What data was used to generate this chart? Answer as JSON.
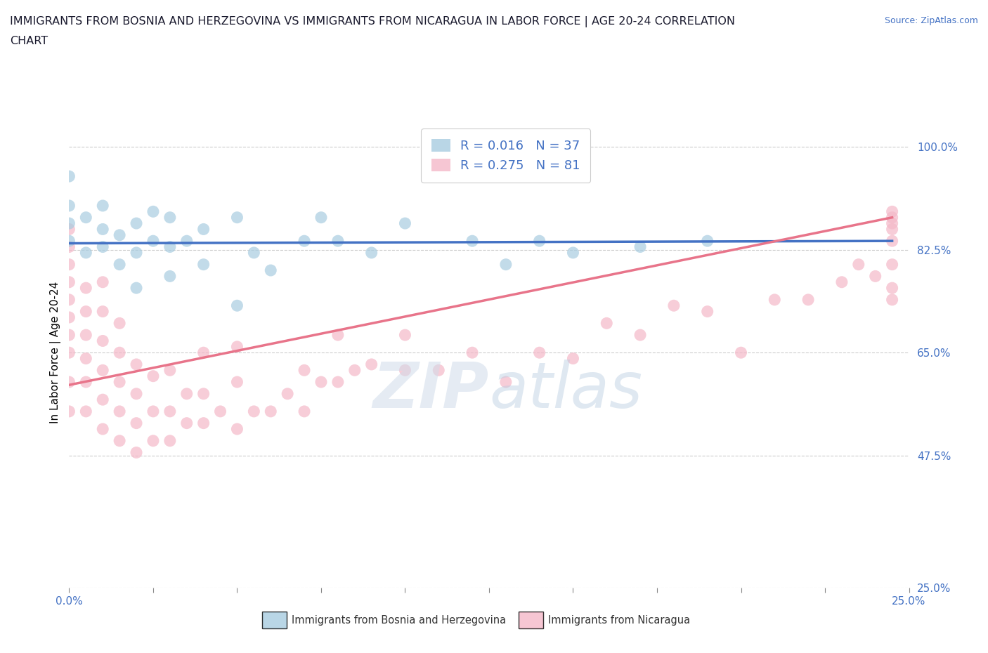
{
  "title_line1": "IMMIGRANTS FROM BOSNIA AND HERZEGOVINA VS IMMIGRANTS FROM NICARAGUA IN LABOR FORCE | AGE 20-24 CORRELATION",
  "title_line2": "CHART",
  "source_text": "Source: ZipAtlas.com",
  "ylabel": "In Labor Force | Age 20-24",
  "xlim": [
    0.0,
    0.25
  ],
  "ylim": [
    0.25,
    1.05
  ],
  "yticks": [
    0.25,
    0.475,
    0.65,
    0.825,
    1.0
  ],
  "ytick_labels": [
    "25.0%",
    "47.5%",
    "65.0%",
    "82.5%",
    "100.0%"
  ],
  "xticks": [
    0.0,
    0.025,
    0.05,
    0.075,
    0.1,
    0.125,
    0.15,
    0.175,
    0.2,
    0.225,
    0.25
  ],
  "xtick_labels_show": {
    "0.0": "0.0%",
    "0.25": "25.0%"
  },
  "color_bosnia": "#a8cce0",
  "color_nicaragua": "#f4b8c8",
  "line_color_bosnia": "#4472c4",
  "line_color_nicaragua": "#e8748a",
  "legend_label_bosnia": "R = 0.016   N = 37",
  "legend_label_nicaragua": "R = 0.275   N = 81",
  "legend_color_text": "#4472c4",
  "bottom_label_bosnia": "Immigrants from Bosnia and Herzegovina",
  "bottom_label_nicaragua": "Immigrants from Nicaragua",
  "bosnia_x": [
    0.0,
    0.0,
    0.0,
    0.0,
    0.005,
    0.005,
    0.01,
    0.01,
    0.01,
    0.015,
    0.015,
    0.02,
    0.02,
    0.02,
    0.025,
    0.025,
    0.03,
    0.03,
    0.03,
    0.035,
    0.04,
    0.04,
    0.05,
    0.05,
    0.055,
    0.06,
    0.07,
    0.075,
    0.08,
    0.09,
    0.1,
    0.12,
    0.13,
    0.14,
    0.15,
    0.17,
    0.19
  ],
  "bosnia_y": [
    0.84,
    0.87,
    0.9,
    0.95,
    0.82,
    0.88,
    0.83,
    0.86,
    0.9,
    0.8,
    0.85,
    0.76,
    0.82,
    0.87,
    0.84,
    0.89,
    0.78,
    0.83,
    0.88,
    0.84,
    0.8,
    0.86,
    0.73,
    0.88,
    0.82,
    0.79,
    0.84,
    0.88,
    0.84,
    0.82,
    0.87,
    0.84,
    0.8,
    0.84,
    0.82,
    0.83,
    0.84
  ],
  "nicaragua_x": [
    0.0,
    0.0,
    0.0,
    0.0,
    0.0,
    0.0,
    0.0,
    0.0,
    0.0,
    0.0,
    0.005,
    0.005,
    0.005,
    0.005,
    0.005,
    0.005,
    0.01,
    0.01,
    0.01,
    0.01,
    0.01,
    0.01,
    0.015,
    0.015,
    0.015,
    0.015,
    0.015,
    0.02,
    0.02,
    0.02,
    0.02,
    0.025,
    0.025,
    0.025,
    0.03,
    0.03,
    0.03,
    0.035,
    0.035,
    0.04,
    0.04,
    0.04,
    0.045,
    0.05,
    0.05,
    0.05,
    0.055,
    0.06,
    0.065,
    0.07,
    0.07,
    0.075,
    0.08,
    0.08,
    0.085,
    0.09,
    0.1,
    0.1,
    0.11,
    0.12,
    0.13,
    0.14,
    0.15,
    0.16,
    0.17,
    0.18,
    0.19,
    0.2,
    0.21,
    0.22,
    0.23,
    0.235,
    0.24,
    0.245,
    0.245,
    0.245,
    0.245,
    0.245,
    0.245,
    0.245,
    0.245
  ],
  "nicaragua_y": [
    0.55,
    0.6,
    0.65,
    0.68,
    0.71,
    0.74,
    0.77,
    0.8,
    0.83,
    0.86,
    0.55,
    0.6,
    0.64,
    0.68,
    0.72,
    0.76,
    0.52,
    0.57,
    0.62,
    0.67,
    0.72,
    0.77,
    0.5,
    0.55,
    0.6,
    0.65,
    0.7,
    0.48,
    0.53,
    0.58,
    0.63,
    0.5,
    0.55,
    0.61,
    0.5,
    0.55,
    0.62,
    0.53,
    0.58,
    0.53,
    0.58,
    0.65,
    0.55,
    0.52,
    0.6,
    0.66,
    0.55,
    0.55,
    0.58,
    0.55,
    0.62,
    0.6,
    0.6,
    0.68,
    0.62,
    0.63,
    0.62,
    0.68,
    0.62,
    0.65,
    0.6,
    0.65,
    0.64,
    0.7,
    0.68,
    0.73,
    0.72,
    0.65,
    0.74,
    0.74,
    0.77,
    0.8,
    0.78,
    0.74,
    0.76,
    0.8,
    0.84,
    0.86,
    0.87,
    0.88,
    0.89
  ],
  "bosnia_trend_x": [
    0.0,
    0.245
  ],
  "bosnia_trend_y": [
    0.836,
    0.84
  ],
  "nicaragua_trend_x": [
    0.0,
    0.245
  ],
  "nicaragua_trend_y": [
    0.595,
    0.88
  ]
}
